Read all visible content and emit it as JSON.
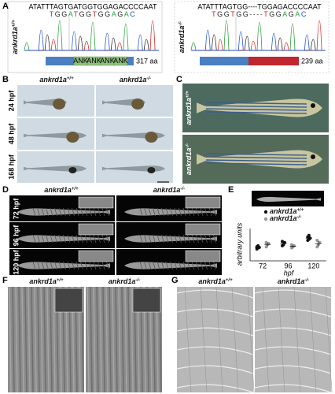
{
  "panel_a": {
    "label": "A",
    "left": {
      "gene": "ankrd1a",
      "genotype": "+/+",
      "sequence": "ATATTTAGTGATGGTGGAGACCCCAAT",
      "reads": "TGGATGGTGGAGAC",
      "domains": [
        "ANK",
        "ANK",
        "ANK",
        "ANK"
      ],
      "length": "317 aa"
    },
    "right": {
      "gene": "ankrd1a",
      "genotype": "-/-",
      "sequence": "ATATTTAGTGG----TGGAGACCCCAAT",
      "reads": "TGGTGG----TGGAGAC",
      "length": "239 aa"
    }
  },
  "panel_b": {
    "label": "B",
    "columns": [
      {
        "gene": "ankrd1a",
        "genotype": "+/+"
      },
      {
        "gene": "ankrd1a",
        "genotype": "-/-"
      }
    ],
    "rows": [
      "24 hpf",
      "48 hpf",
      "168 hpf"
    ]
  },
  "panel_c": {
    "label": "C",
    "rows": [
      {
        "gene": "ankrd1a",
        "genotype": "+/+"
      },
      {
        "gene": "ankrd1a",
        "genotype": "-/-"
      }
    ]
  },
  "panel_d": {
    "label": "D",
    "columns": [
      {
        "gene": "ankrd1a",
        "genotype": "+/+"
      },
      {
        "gene": "ankrd1a",
        "genotype": "-/-"
      }
    ],
    "rows": [
      "72 hpf",
      "96 hpf",
      "120 hpf"
    ]
  },
  "panel_e": {
    "label": "E",
    "type": "scatter",
    "y_label": "arbitrary units",
    "x_label": "hpf",
    "categories": [
      "72",
      "96",
      "120"
    ],
    "ylim": [
      0,
      150
    ],
    "series": [
      {
        "gene": "ankrd1a",
        "genotype": "+/+",
        "color": "#111111",
        "values": [
          [
            55,
            60,
            62,
            65,
            70
          ],
          [
            70,
            75,
            85,
            90
          ],
          [
            95,
            100,
            105,
            110,
            118
          ]
        ]
      },
      {
        "gene": "ankrd1a",
        "genotype": "-/-",
        "color": "#999999",
        "values": [
          [
            65,
            75,
            80,
            85
          ],
          [
            60,
            65,
            70,
            75
          ],
          [
            65,
            75,
            85,
            95
          ]
        ]
      }
    ]
  },
  "panel_f": {
    "label": "F",
    "columns": [
      {
        "gene": "ankrd1a",
        "genotype": "+/+"
      },
      {
        "gene": "ankrd1a",
        "genotype": "-/-"
      }
    ]
  },
  "panel_g": {
    "label": "G",
    "columns": [
      {
        "gene": "ankrd1a",
        "genotype": "+/+"
      },
      {
        "gene": "ankrd1a",
        "genotype": "-/-"
      }
    ]
  }
}
